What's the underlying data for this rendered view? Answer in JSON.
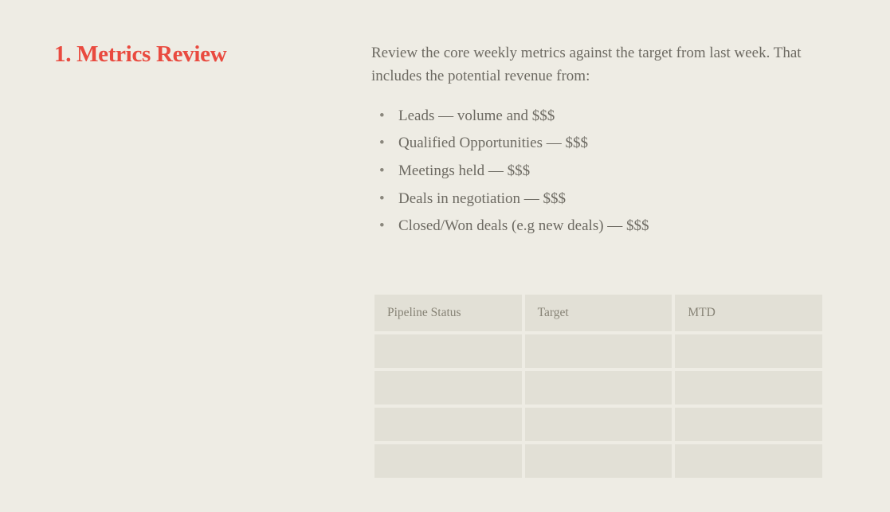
{
  "section": {
    "number": "1.",
    "title": "Metrics Review"
  },
  "intro": "Review the core weekly metrics against the target from last week. That includes the potential revenue from:",
  "bullets": [
    "Leads — volume and $$$",
    "Qualified Opportunities — $$$",
    "Meetings held — $$$",
    "Deals in negotiation — $$$",
    "Closed/Won deals (e.g new deals) — $$$"
  ],
  "table": {
    "columns": [
      "Pipeline Status",
      "Target",
      "MTD"
    ],
    "rows": [
      [
        "",
        "",
        ""
      ],
      [
        "",
        "",
        ""
      ],
      [
        "",
        "",
        ""
      ],
      [
        "",
        "",
        ""
      ]
    ],
    "header_bg": "#e2e0d6",
    "cell_bg": "#e2e0d6",
    "header_text_color": "#878376"
  },
  "colors": {
    "page_bg": "#eeece4",
    "heading": "#e94a3f",
    "body_text": "#6d6a62"
  }
}
